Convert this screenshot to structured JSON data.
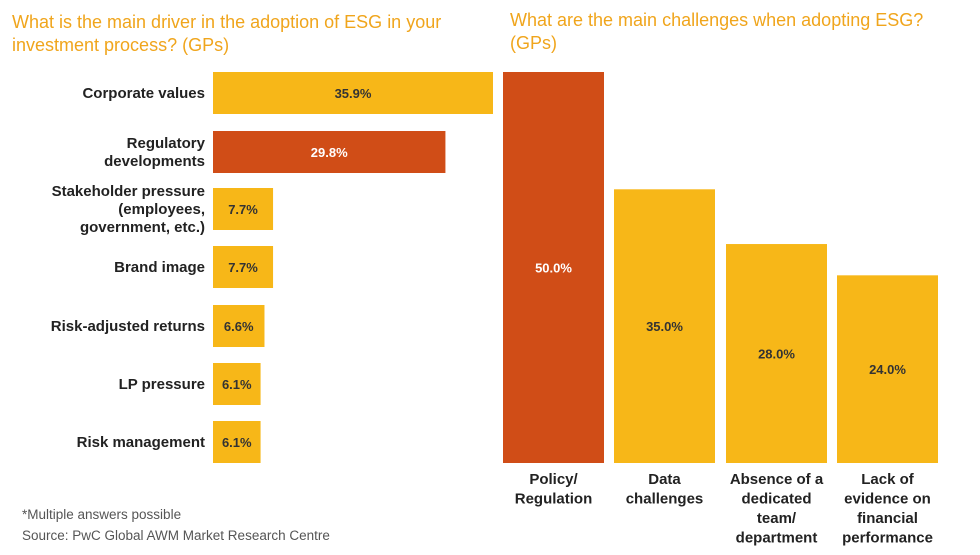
{
  "chart_data": [
    {
      "type": "bar",
      "orientation": "horizontal",
      "title": "What is the main driver in the adoption of ESG in your investment process? (GPs)",
      "categories": [
        [
          "Corporate values"
        ],
        [
          "Regulatory",
          "developments"
        ],
        [
          "Stakeholder pressure",
          "(employees,",
          "government, etc.)"
        ],
        [
          "Brand image"
        ],
        [
          "Risk-adjusted returns"
        ],
        [
          "LP pressure"
        ],
        [
          "Risk management"
        ]
      ],
      "values": [
        35.9,
        29.8,
        7.7,
        7.7,
        6.6,
        6.1,
        6.1
      ],
      "value_labels": [
        "35.9%",
        "29.8%",
        "7.7%",
        "7.7%",
        "6.6%",
        "6.1%",
        "6.1%"
      ],
      "highlight_index": 1,
      "xlim": [
        0,
        35.9
      ]
    },
    {
      "type": "bar",
      "orientation": "vertical",
      "title": "What are the main challenges when adopting ESG? (GPs)",
      "categories": [
        [
          "Policy/",
          "Regulation"
        ],
        [
          "Data",
          "challenges"
        ],
        [
          "Absence of a",
          "dedicated",
          "team/",
          "department"
        ],
        [
          "Lack of",
          "evidence on",
          "financial",
          "performance"
        ]
      ],
      "values": [
        50.0,
        35.0,
        28.0,
        24.0
      ],
      "value_labels": [
        "50.0%",
        "35.0%",
        "28.0%",
        "24.0%"
      ],
      "highlight_index": 0,
      "ylim": [
        0,
        50.0
      ]
    }
  ],
  "colors": {
    "primary": "#F7B718",
    "highlight": "#D04D17",
    "title": "#F0A51C"
  },
  "footnotes": {
    "note": "*Multiple answers possible",
    "source": "Source: PwC Global AWM Market Research Centre"
  }
}
